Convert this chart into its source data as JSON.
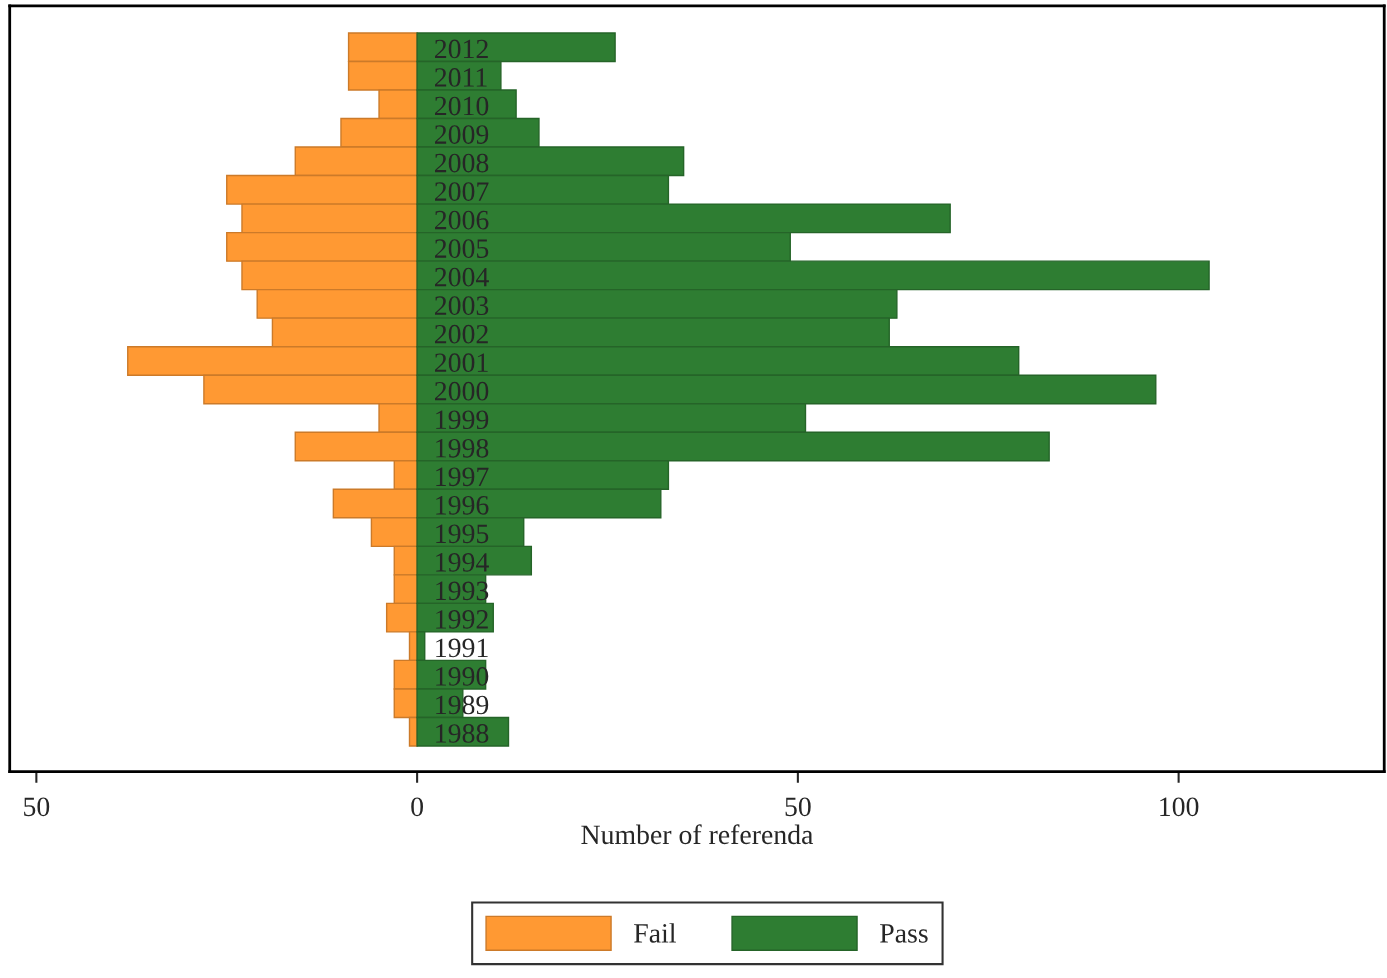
{
  "chart_data": {
    "type": "bar",
    "orientation": "horizontal",
    "xlabel": "Number of referenda",
    "categories": [
      "2012",
      "2011",
      "2010",
      "2009",
      "2008",
      "2007",
      "2006",
      "2005",
      "2004",
      "2003",
      "2002",
      "2001",
      "2000",
      "1999",
      "1998",
      "1997",
      "1996",
      "1995",
      "1994",
      "1993",
      "1992",
      "1991",
      "1990",
      "1989",
      "1988"
    ],
    "series": [
      {
        "name": "Fail",
        "color": "#ff9933",
        "values": [
          -9,
          -9,
          -5,
          -10,
          -16,
          -25,
          -23,
          -25,
          -23,
          -21,
          -19,
          -38,
          -28,
          -5,
          -16,
          -3,
          -11,
          -6,
          -3,
          -3,
          -4,
          -1,
          -3,
          -3,
          -1
        ]
      },
      {
        "name": "Pass",
        "color": "#2e7d32",
        "values": [
          26,
          11,
          13,
          16,
          35,
          33,
          70,
          49,
          104,
          63,
          62,
          79,
          97,
          51,
          83,
          33,
          32,
          14,
          15,
          9,
          10,
          1,
          9,
          6,
          12
        ]
      }
    ],
    "xlim": [
      -53.5,
      127
    ],
    "xticks": [
      {
        "value": -50,
        "label": "50"
      },
      0,
      50,
      100
    ],
    "stacked": true,
    "grid": false,
    "legend": "bottom"
  }
}
